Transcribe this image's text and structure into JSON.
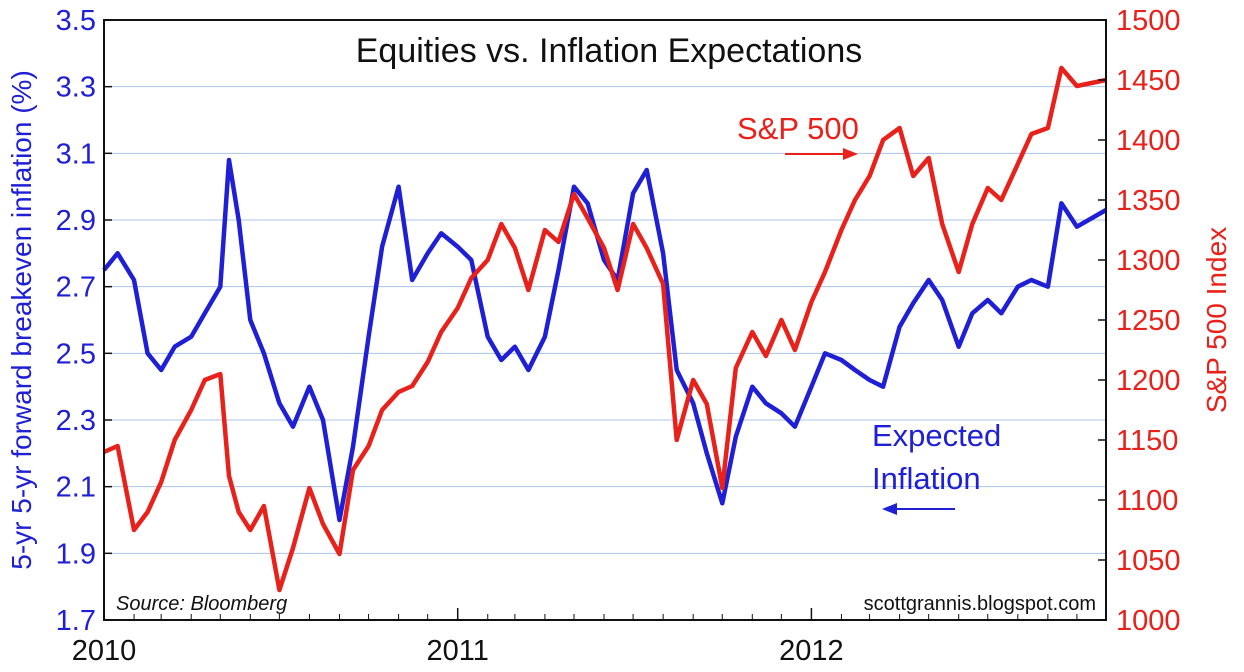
{
  "chart_data": {
    "type": "line",
    "title": "Equities vs. Inflation Expectations",
    "x_axis": {
      "ticks": [
        "2010",
        "2011",
        "2012"
      ],
      "range": [
        "2010-01-01",
        "2012-10-31"
      ]
    },
    "y_left": {
      "label": "5-yr 5-yr forward breakeven inflation (%)",
      "range": [
        1.7,
        3.5
      ],
      "ticks": [
        "1.7",
        "1.9",
        "2.1",
        "2.3",
        "2.5",
        "2.7",
        "2.9",
        "3.1",
        "3.3",
        "3.5"
      ],
      "color": "#1f1fd6"
    },
    "y_right": {
      "label": "S&P 500 Index",
      "range": [
        1000,
        1500
      ],
      "ticks": [
        "1000",
        "1050",
        "1100",
        "1150",
        "1200",
        "1250",
        "1300",
        "1350",
        "1400",
        "1450",
        "1500"
      ],
      "color": "#e8211b"
    },
    "grid": true,
    "annotations": {
      "sp500": "S&P 500",
      "expected_line1": "Expected",
      "expected_line2": "Inflation",
      "source": "Source: Bloomberg",
      "credit": "scottgrannis.blogspot.com"
    },
    "series": [
      {
        "name": "Expected Inflation",
        "axis": "left",
        "color": "#1f1fd6",
        "points": [
          [
            "2010-01-01",
            2.75
          ],
          [
            "2010-01-15",
            2.8
          ],
          [
            "2010-02-01",
            2.72
          ],
          [
            "2010-02-15",
            2.5
          ],
          [
            "2010-03-01",
            2.45
          ],
          [
            "2010-03-15",
            2.52
          ],
          [
            "2010-04-01",
            2.55
          ],
          [
            "2010-04-15",
            2.62
          ],
          [
            "2010-05-01",
            2.7
          ],
          [
            "2010-05-10",
            3.08
          ],
          [
            "2010-05-20",
            2.9
          ],
          [
            "2010-06-01",
            2.6
          ],
          [
            "2010-06-15",
            2.5
          ],
          [
            "2010-07-01",
            2.35
          ],
          [
            "2010-07-15",
            2.28
          ],
          [
            "2010-08-01",
            2.4
          ],
          [
            "2010-08-15",
            2.3
          ],
          [
            "2010-09-01",
            2.0
          ],
          [
            "2010-09-15",
            2.22
          ],
          [
            "2010-10-01",
            2.55
          ],
          [
            "2010-10-15",
            2.82
          ],
          [
            "2010-11-01",
            3.0
          ],
          [
            "2010-11-15",
            2.72
          ],
          [
            "2010-12-01",
            2.8
          ],
          [
            "2010-12-15",
            2.86
          ],
          [
            "2011-01-01",
            2.82
          ],
          [
            "2011-01-15",
            2.78
          ],
          [
            "2011-02-01",
            2.55
          ],
          [
            "2011-02-15",
            2.48
          ],
          [
            "2011-03-01",
            2.52
          ],
          [
            "2011-03-15",
            2.45
          ],
          [
            "2011-04-01",
            2.55
          ],
          [
            "2011-04-15",
            2.75
          ],
          [
            "2011-05-01",
            3.0
          ],
          [
            "2011-05-15",
            2.95
          ],
          [
            "2011-06-01",
            2.78
          ],
          [
            "2011-06-15",
            2.72
          ],
          [
            "2011-07-01",
            2.98
          ],
          [
            "2011-07-15",
            3.05
          ],
          [
            "2011-08-01",
            2.8
          ],
          [
            "2011-08-15",
            2.45
          ],
          [
            "2011-09-01",
            2.35
          ],
          [
            "2011-09-15",
            2.2
          ],
          [
            "2011-10-01",
            2.05
          ],
          [
            "2011-10-15",
            2.25
          ],
          [
            "2011-11-01",
            2.4
          ],
          [
            "2011-11-15",
            2.35
          ],
          [
            "2011-12-01",
            2.32
          ],
          [
            "2011-12-15",
            2.28
          ],
          [
            "2012-01-01",
            2.4
          ],
          [
            "2012-01-15",
            2.5
          ],
          [
            "2012-02-01",
            2.48
          ],
          [
            "2012-02-15",
            2.45
          ],
          [
            "2012-03-01",
            2.42
          ],
          [
            "2012-03-15",
            2.4
          ],
          [
            "2012-04-01",
            2.58
          ],
          [
            "2012-04-15",
            2.65
          ],
          [
            "2012-05-01",
            2.72
          ],
          [
            "2012-05-15",
            2.66
          ],
          [
            "2012-06-01",
            2.52
          ],
          [
            "2012-06-15",
            2.62
          ],
          [
            "2012-07-01",
            2.66
          ],
          [
            "2012-07-15",
            2.62
          ],
          [
            "2012-08-01",
            2.7
          ],
          [
            "2012-08-15",
            2.72
          ],
          [
            "2012-09-01",
            2.7
          ],
          [
            "2012-09-15",
            2.95
          ],
          [
            "2012-10-01",
            2.88
          ],
          [
            "2012-10-31",
            2.93
          ]
        ]
      },
      {
        "name": "S&P 500",
        "axis": "right",
        "color": "#e8211b",
        "points": [
          [
            "2010-01-01",
            1140
          ],
          [
            "2010-01-15",
            1145
          ],
          [
            "2010-02-01",
            1075
          ],
          [
            "2010-02-15",
            1090
          ],
          [
            "2010-03-01",
            1115
          ],
          [
            "2010-03-15",
            1150
          ],
          [
            "2010-04-01",
            1175
          ],
          [
            "2010-04-15",
            1200
          ],
          [
            "2010-05-01",
            1205
          ],
          [
            "2010-05-10",
            1120
          ],
          [
            "2010-05-20",
            1090
          ],
          [
            "2010-06-01",
            1075
          ],
          [
            "2010-06-15",
            1095
          ],
          [
            "2010-07-01",
            1025
          ],
          [
            "2010-07-15",
            1060
          ],
          [
            "2010-08-01",
            1110
          ],
          [
            "2010-08-15",
            1080
          ],
          [
            "2010-09-01",
            1055
          ],
          [
            "2010-09-15",
            1125
          ],
          [
            "2010-10-01",
            1145
          ],
          [
            "2010-10-15",
            1175
          ],
          [
            "2010-11-01",
            1190
          ],
          [
            "2010-11-15",
            1195
          ],
          [
            "2010-12-01",
            1215
          ],
          [
            "2010-12-15",
            1240
          ],
          [
            "2011-01-01",
            1260
          ],
          [
            "2011-01-15",
            1285
          ],
          [
            "2011-02-01",
            1300
          ],
          [
            "2011-02-15",
            1330
          ],
          [
            "2011-03-01",
            1310
          ],
          [
            "2011-03-15",
            1275
          ],
          [
            "2011-04-01",
            1325
          ],
          [
            "2011-04-15",
            1315
          ],
          [
            "2011-05-01",
            1355
          ],
          [
            "2011-05-15",
            1335
          ],
          [
            "2011-06-01",
            1310
          ],
          [
            "2011-06-15",
            1275
          ],
          [
            "2011-07-01",
            1330
          ],
          [
            "2011-07-15",
            1310
          ],
          [
            "2011-08-01",
            1280
          ],
          [
            "2011-08-15",
            1150
          ],
          [
            "2011-09-01",
            1200
          ],
          [
            "2011-09-15",
            1180
          ],
          [
            "2011-10-01",
            1110
          ],
          [
            "2011-10-15",
            1210
          ],
          [
            "2011-11-01",
            1240
          ],
          [
            "2011-11-15",
            1220
          ],
          [
            "2011-12-01",
            1250
          ],
          [
            "2011-12-15",
            1225
          ],
          [
            "2012-01-01",
            1265
          ],
          [
            "2012-01-15",
            1290
          ],
          [
            "2012-02-01",
            1325
          ],
          [
            "2012-02-15",
            1350
          ],
          [
            "2012-03-01",
            1370
          ],
          [
            "2012-03-15",
            1400
          ],
          [
            "2012-04-01",
            1410
          ],
          [
            "2012-04-15",
            1370
          ],
          [
            "2012-05-01",
            1385
          ],
          [
            "2012-05-15",
            1330
          ],
          [
            "2012-06-01",
            1290
          ],
          [
            "2012-06-15",
            1330
          ],
          [
            "2012-07-01",
            1360
          ],
          [
            "2012-07-15",
            1350
          ],
          [
            "2012-08-01",
            1380
          ],
          [
            "2012-08-15",
            1405
          ],
          [
            "2012-09-01",
            1410
          ],
          [
            "2012-09-15",
            1460
          ],
          [
            "2012-10-01",
            1445
          ],
          [
            "2012-10-31",
            1450
          ]
        ]
      }
    ]
  }
}
